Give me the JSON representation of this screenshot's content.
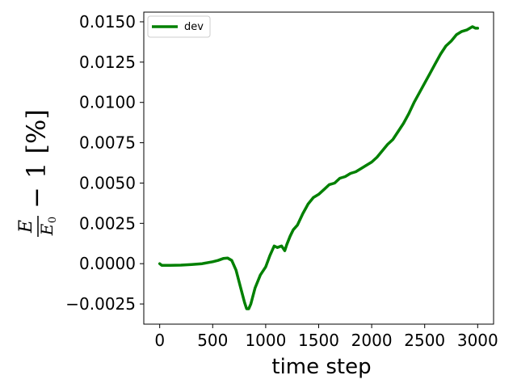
{
  "chart_data": {
    "type": "line",
    "xlabel": "time step",
    "ylabel": {
      "numerator": "E",
      "denominator": "E",
      "denominator_subscript": "0",
      "suffix": "− 1 [%]"
    },
    "xlim": [
      -150,
      3150
    ],
    "ylim": [
      -0.00375,
      0.0156
    ],
    "xticks": [
      0,
      500,
      1000,
      1500,
      2000,
      2500,
      3000
    ],
    "xtick_labels": [
      "0",
      "500",
      "1000",
      "1500",
      "2000",
      "2500",
      "3000"
    ],
    "yticks": [
      -0.0025,
      0.0,
      0.0025,
      0.005,
      0.0075,
      0.01,
      0.0125,
      0.015
    ],
    "ytick_labels": [
      "−0.0025",
      "0.0000",
      "0.0025",
      "0.0050",
      "0.0075",
      "0.0100",
      "0.0125",
      "0.0150"
    ],
    "legend_position": "top-left",
    "grid": false,
    "series": [
      {
        "name": "dev",
        "color": "#008000",
        "x": [
          0,
          20,
          100,
          200,
          300,
          400,
          500,
          550,
          600,
          640,
          680,
          720,
          760,
          800,
          820,
          840,
          860,
          900,
          950,
          1000,
          1040,
          1080,
          1110,
          1150,
          1180,
          1200,
          1230,
          1260,
          1300,
          1350,
          1400,
          1450,
          1500,
          1550,
          1600,
          1650,
          1700,
          1750,
          1800,
          1850,
          1900,
          1950,
          2000,
          2050,
          2100,
          2150,
          2200,
          2250,
          2300,
          2350,
          2400,
          2450,
          2500,
          2550,
          2600,
          2650,
          2700,
          2750,
          2800,
          2850,
          2900,
          2950,
          2980,
          3000
        ],
        "y": [
          0.0,
          -0.0001,
          -0.0001,
          -9e-05,
          -5e-05,
          0.0,
          0.00012,
          0.0002,
          0.00032,
          0.00035,
          0.0002,
          -0.0004,
          -0.0014,
          -0.0024,
          -0.0028,
          -0.0028,
          -0.0025,
          -0.0015,
          -0.0007,
          -0.0002,
          0.0005,
          0.0011,
          0.001,
          0.0011,
          0.0008,
          0.0012,
          0.0017,
          0.0021,
          0.0024,
          0.0031,
          0.0037,
          0.0041,
          0.0043,
          0.0046,
          0.0049,
          0.005,
          0.0053,
          0.0054,
          0.0056,
          0.0057,
          0.0059,
          0.0061,
          0.0063,
          0.0066,
          0.007,
          0.0074,
          0.0077,
          0.0082,
          0.0087,
          0.0093,
          0.01,
          0.0106,
          0.0112,
          0.0118,
          0.0124,
          0.013,
          0.0135,
          0.0138,
          0.0142,
          0.0144,
          0.0145,
          0.0147,
          0.0146,
          0.0146
        ]
      }
    ]
  }
}
